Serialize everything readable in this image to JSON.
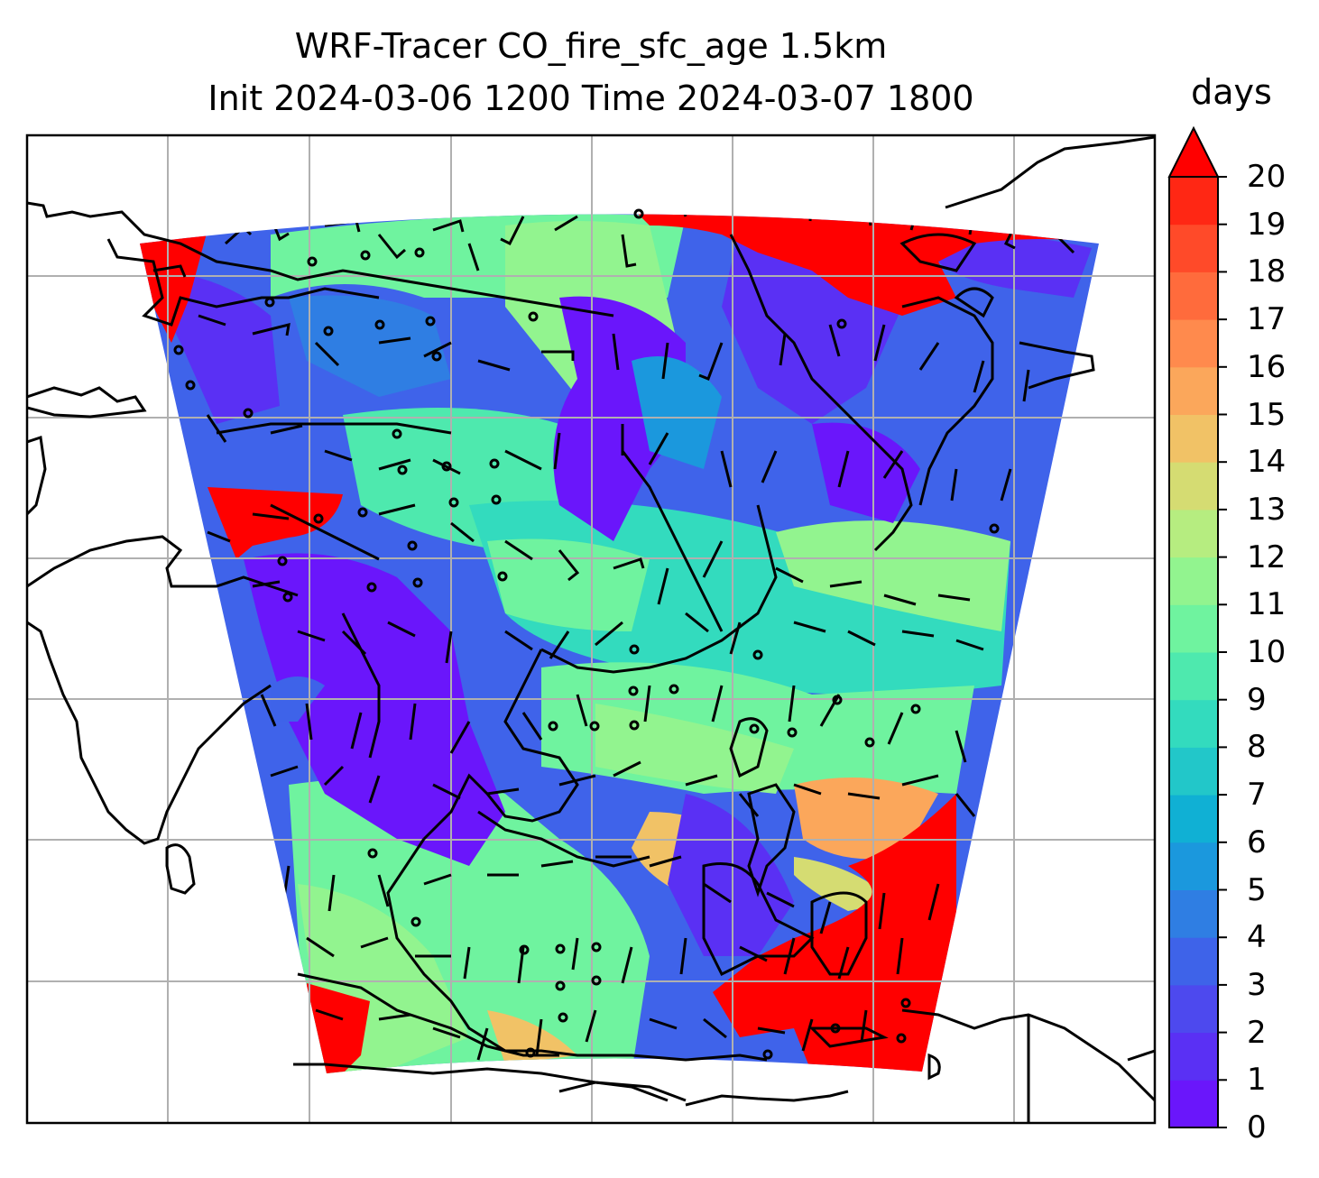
{
  "title": {
    "line1": "WRF-Tracer CO_fire_sfc_age 1.5km",
    "line2": "Init 2024-03-06 1200 Time 2024-03-07 1800"
  },
  "colorbar": {
    "unit": "days",
    "min": 0,
    "max": 20,
    "extend": "max",
    "ticks": [
      "0",
      "1",
      "2",
      "3",
      "4",
      "5",
      "6",
      "7",
      "8",
      "9",
      "10",
      "11",
      "12",
      "13",
      "14",
      "15",
      "16",
      "17",
      "18",
      "19",
      "20"
    ],
    "colors": [
      "#6a16fb",
      "#5a30f4",
      "#4d49ee",
      "#3e63e9",
      "#2f7ee3",
      "#1b98dd",
      "#10b0d4",
      "#22c7c9",
      "#33dbbe",
      "#4ee9ae",
      "#6ff39f",
      "#92f48f",
      "#b6ed80",
      "#d5dc72",
      "#f1c266",
      "#fba75b",
      "#ff8a4d",
      "#ff6b3c",
      "#ff4a29",
      "#ff2714"
    ],
    "over_color": "#ff0000"
  },
  "map": {
    "gridlines": "on",
    "features": [
      "coastlines",
      "borders",
      "wind-barbs",
      "calm-circles"
    ]
  }
}
